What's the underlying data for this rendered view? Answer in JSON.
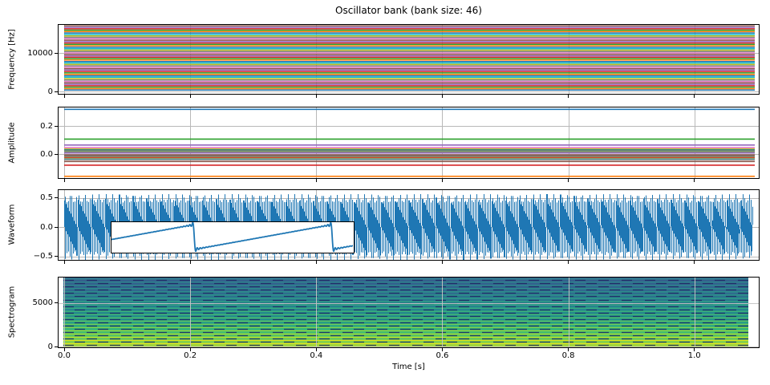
{
  "chart_data": {
    "type": "multi-panel",
    "title": "Oscillator bank (bank size: 46)",
    "bank_size": 46,
    "fundamental_hz": 370,
    "duration_s": 1.09,
    "xlabel": "Time [s]",
    "x_ticks": {
      "values": [
        0,
        0.2,
        0.4,
        0.6,
        0.8,
        1.0
      ],
      "labels": [
        "0.0",
        "0.2",
        "0.4",
        "0.6",
        "0.8",
        "1.0"
      ]
    },
    "grid": true,
    "grid_color": "#b9b9b9",
    "background": "#ffffff",
    "color_cycle": [
      "#1f77b4",
      "#ff7f0e",
      "#2ca02c",
      "#d62728",
      "#9467bd",
      "#8c564b",
      "#e377c2",
      "#7f7f7f",
      "#bcbd22",
      "#17becf"
    ],
    "panels": [
      {
        "name": "frequency",
        "type": "line",
        "ylabel": "Frequency [Hz]",
        "y_ticks": {
          "values": [
            0,
            10000
          ],
          "labels": [
            "0",
            "10000"
          ]
        },
        "ylim_hz": [
          -900,
          17900
        ],
        "frequencies_hz": [
          370,
          740,
          1110,
          1480,
          1850,
          2220,
          2590,
          2960,
          3330,
          3700,
          4070,
          4440,
          4810,
          5180,
          5550,
          5920,
          6290,
          6660,
          7030,
          7400,
          7770,
          8140,
          8510,
          8880,
          9250,
          9620,
          9990,
          10360,
          10730,
          11100,
          11470,
          11840,
          12210,
          12580,
          12950,
          13320,
          13690,
          14060,
          14430,
          14800,
          15170,
          15540,
          15910,
          16280,
          16650,
          17020
        ]
      },
      {
        "name": "amplitude",
        "type": "line",
        "ylabel": "Amplitude",
        "y_ticks": {
          "values": [
            0.0,
            0.2
          ],
          "labels": [
            "0.0",
            "0.2"
          ]
        },
        "ylim": [
          -0.18,
          0.34
        ],
        "amplitudes": [
          0.3183,
          -0.1592,
          0.1061,
          -0.0796,
          0.0637,
          -0.0531,
          0.0455,
          -0.0398,
          0.0354,
          -0.0318,
          0.0289,
          -0.0265,
          0.0245,
          -0.0227,
          0.0212,
          -0.0199,
          0.0187,
          -0.0177,
          0.0168,
          -0.0159,
          0.0152,
          -0.0145,
          0.0138,
          -0.0133,
          0.0127,
          -0.0122,
          0.0118,
          -0.0114,
          0.011,
          -0.0106,
          0.0103,
          -0.0099,
          0.0096,
          -0.0094,
          0.0091,
          -0.0088,
          0.0086,
          -0.0084,
          0.0082,
          -0.008,
          0.0078,
          -0.0076,
          0.0074,
          -0.0072,
          0.0071,
          -0.0069
        ]
      },
      {
        "name": "waveform",
        "type": "line",
        "ylabel": "Waveform",
        "y_ticks": {
          "values": [
            -0.5,
            0.0,
            0.5
          ],
          "labels": [
            "−0.5",
            "0.0",
            "0.5"
          ]
        },
        "ylim": [
          -0.62,
          0.62
        ],
        "peak_amplitude": 0.55,
        "line_color": "#1f77b4",
        "inset": {
          "description": "zoomed sawtooth waveform",
          "periods_shown": 1.75,
          "line_color": "#1f77b4"
        }
      },
      {
        "name": "spectrogram",
        "type": "heatmap",
        "ylabel": "Spectrogram",
        "y_ticks": {
          "values": [
            0,
            5000
          ],
          "labels": [
            "0",
            "5000"
          ]
        },
        "ylim_hz": [
          0,
          8000
        ],
        "colormap": "viridis",
        "harmonic_spacing_hz": 370,
        "harmonics_visible": 21
      }
    ]
  }
}
